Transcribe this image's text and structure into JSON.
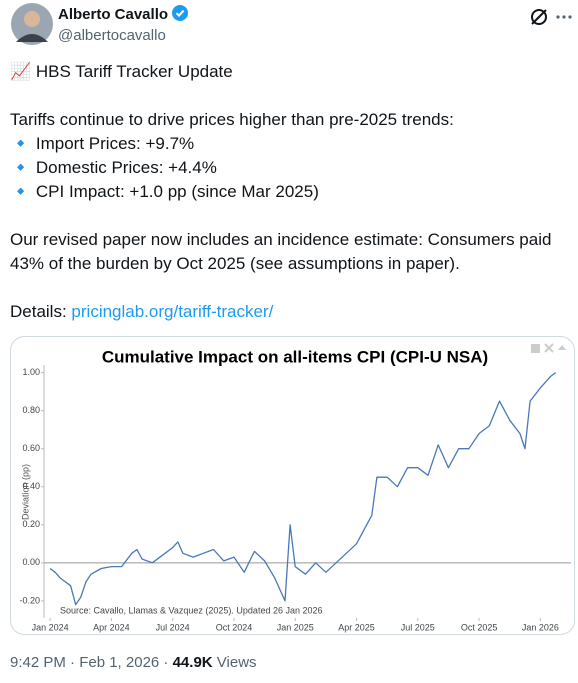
{
  "author": {
    "name": "Alberto Cavallo",
    "handle": "@albertocavallo"
  },
  "post": {
    "headline": "📈 HBS Tariff Tracker Update",
    "intro": "Tariffs continue to drive prices higher than pre-2025 trends:",
    "bullets": [
      "🔹 Import Prices: +9.7%",
      "🔹 Domestic Prices: +4.4%",
      "🔹 CPI Impact: +1.0 pp (since Mar 2025)"
    ],
    "paragraph": "Our revised paper now includes an incidence estimate: Consumers paid 43% of the burden by Oct 2025 (see assumptions in paper).",
    "details_label": "Details:",
    "link": "pricinglab.org/tariff-tracker/"
  },
  "chart_data": {
    "type": "line",
    "title": "Cumulative Impact on all-items CPI (CPI-U NSA)",
    "y_label": "Deviation (pp)",
    "source": "Source: Cavallo, Llamas & Vazquez (2025). Updated 26 Jan 2026",
    "color": "#4a78b5",
    "x": [
      0,
      0.25,
      0.5,
      0.75,
      1,
      1.25,
      1.5,
      1.75,
      2,
      2.5,
      3,
      3.5,
      4,
      4.25,
      4.5,
      5,
      5.5,
      6,
      6.25,
      6.5,
      7,
      7.5,
      8,
      8.5,
      9,
      9.5,
      10,
      10.5,
      11,
      11.5,
      11.75,
      12,
      12.5,
      13,
      13.5,
      14,
      14.5,
      15,
      15.5,
      15.75,
      16,
      16.5,
      17,
      17.5,
      18,
      18.5,
      19,
      19.5,
      20,
      20.5,
      21,
      21.5,
      22,
      22.5,
      23,
      23.25,
      23.5,
      24,
      24.5,
      24.75
    ],
    "values": [
      -0.03,
      -0.05,
      -0.08,
      -0.1,
      -0.12,
      -0.22,
      -0.18,
      -0.1,
      -0.06,
      -0.03,
      -0.02,
      -0.02,
      0.05,
      0.07,
      0.02,
      0,
      0.04,
      0.08,
      0.11,
      0.05,
      0.03,
      0.05,
      0.07,
      0.01,
      0.03,
      -0.05,
      0.06,
      0.01,
      -0.08,
      -0.2,
      0.2,
      -0.02,
      -0.06,
      0,
      -0.05,
      0,
      0.05,
      0.1,
      0.2,
      0.25,
      0.45,
      0.45,
      0.4,
      0.5,
      0.5,
      0.46,
      0.62,
      0.5,
      0.6,
      0.6,
      0.68,
      0.72,
      0.85,
      0.75,
      0.68,
      0.6,
      0.85,
      0.92,
      0.98,
      1
    ],
    "xlim": [
      -0.3,
      25.5
    ],
    "xticks": [
      {
        "value": 0,
        "label": "Jan 2024"
      },
      {
        "value": 3,
        "label": "Apr 2024"
      },
      {
        "value": 6,
        "label": "Jul 2024"
      },
      {
        "value": 9,
        "label": "Oct 2024"
      },
      {
        "value": 12,
        "label": "Jan 2025"
      },
      {
        "value": 15,
        "label": "Apr 2025"
      },
      {
        "value": 18,
        "label": "Jul 2025"
      },
      {
        "value": 21,
        "label": "Oct 2025"
      },
      {
        "value": 24,
        "label": "Jan 2026"
      }
    ],
    "ylim": [
      -0.29,
      1.04
    ],
    "yticks": [
      {
        "value": -0.2,
        "label": "-0.20"
      },
      {
        "value": 0,
        "label": "0.00"
      },
      {
        "value": 0.2,
        "label": "0.20"
      },
      {
        "value": 0.4,
        "label": "0.40"
      },
      {
        "value": 0.6,
        "label": "0.60"
      },
      {
        "value": 0.8,
        "label": "0.80"
      },
      {
        "value": 1,
        "label": "1.00"
      }
    ],
    "zero_line": true
  },
  "meta": {
    "time": "9:42 PM · Feb 1, 2026 ·",
    "views": "44.9K",
    "views_label": "Views"
  }
}
